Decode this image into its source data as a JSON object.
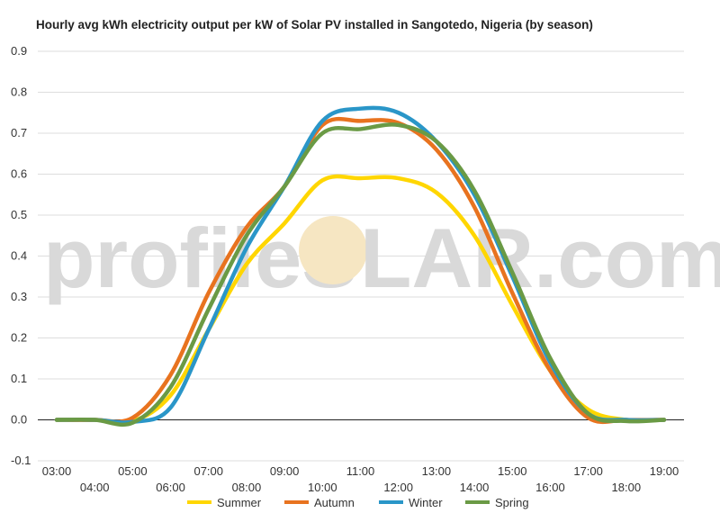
{
  "watermark": {
    "left": "profileS",
    "right": "LAR.com"
  },
  "chart_data": {
    "type": "line",
    "title": "Hourly avg kWh electricity output per kW of Solar PV installed in Sangotedo, Nigeria (by season)",
    "xlabel": "",
    "ylabel": "",
    "x": [
      "03:00",
      "04:00",
      "05:00",
      "06:00",
      "07:00",
      "08:00",
      "09:00",
      "10:00",
      "11:00",
      "12:00",
      "13:00",
      "14:00",
      "15:00",
      "16:00",
      "17:00",
      "18:00",
      "19:00"
    ],
    "ylim": [
      -0.1,
      0.9
    ],
    "yticks": [
      -0.1,
      0.0,
      0.1,
      0.2,
      0.3,
      0.4,
      0.5,
      0.6,
      0.7,
      0.8,
      0.9
    ],
    "grid": true,
    "legend": "bottom",
    "series": [
      {
        "name": "Summer",
        "color": "#FFD600",
        "values": [
          0.0,
          0.0,
          -0.003,
          0.06,
          0.22,
          0.38,
          0.48,
          0.585,
          0.59,
          0.59,
          0.555,
          0.45,
          0.28,
          0.12,
          0.025,
          0.0,
          0.0
        ]
      },
      {
        "name": "Autumn",
        "color": "#E8731F",
        "values": [
          0.0,
          0.0,
          0.005,
          0.11,
          0.31,
          0.47,
          0.57,
          0.72,
          0.73,
          0.725,
          0.66,
          0.52,
          0.31,
          0.12,
          0.005,
          0.0,
          0.0
        ]
      },
      {
        "name": "Winter",
        "color": "#2A96C8",
        "values": [
          0.0,
          0.0,
          -0.005,
          0.03,
          0.22,
          0.42,
          0.57,
          0.73,
          0.76,
          0.75,
          0.68,
          0.55,
          0.35,
          0.14,
          0.015,
          0.0,
          0.0
        ]
      },
      {
        "name": "Spring",
        "color": "#6A9A45",
        "values": [
          0.0,
          0.0,
          -0.007,
          0.08,
          0.27,
          0.45,
          0.57,
          0.7,
          0.71,
          0.72,
          0.68,
          0.56,
          0.36,
          0.15,
          0.015,
          -0.003,
          0.0
        ]
      }
    ]
  }
}
